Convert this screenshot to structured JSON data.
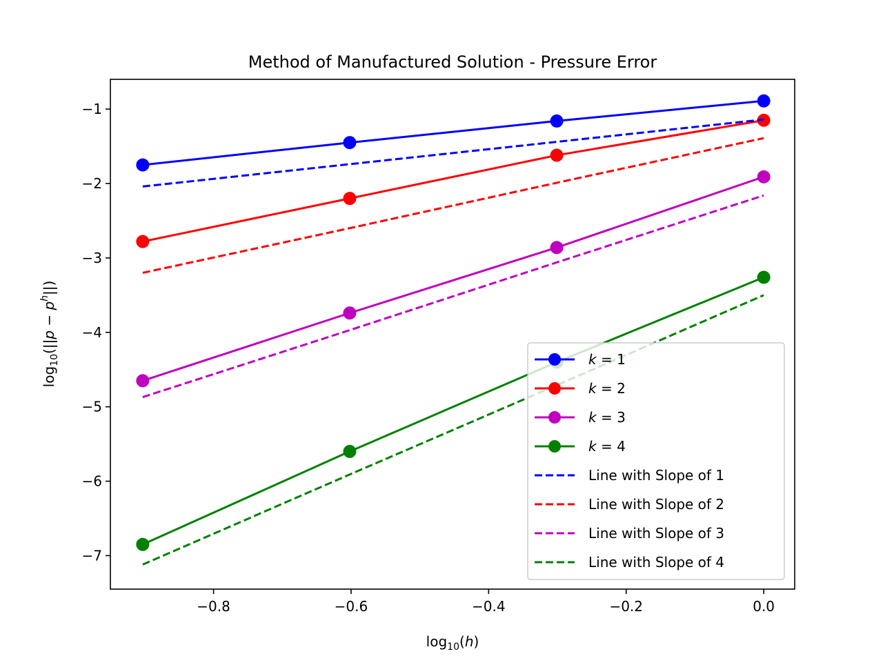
{
  "chart_data": {
    "type": "line",
    "title": "Method of Manufactured Solution - Pressure Error",
    "xlabel": {
      "prefix": "log",
      "sub": "10",
      "open": "(",
      "var": "h",
      "close": ")"
    },
    "ylabel": {
      "prefix": "log",
      "sub": "10",
      "open": "(||",
      "var1": "p",
      "minus": " − ",
      "var2": "p",
      "sup": "h",
      "close": "||)"
    },
    "xlim": [
      -0.95,
      0.045
    ],
    "ylim": [
      -7.45,
      -0.6
    ],
    "xticks": [
      -0.8,
      -0.6,
      -0.4,
      -0.2,
      0.0
    ],
    "xtick_labels": [
      "−0.8",
      "−0.6",
      "−0.4",
      "−0.2",
      "0.0"
    ],
    "yticks": [
      -1,
      -2,
      -3,
      -4,
      -5,
      -6,
      -7
    ],
    "ytick_labels": [
      "−1",
      "−2",
      "−3",
      "−4",
      "−5",
      "−6",
      "−7"
    ],
    "x": [
      -0.903,
      -0.602,
      -0.301,
      0.0
    ],
    "series": [
      {
        "name": "k=1",
        "k": "1",
        "style": "solid",
        "marker": "circle",
        "color": "#0000ff",
        "values": [
          -1.75,
          -1.45,
          -1.16,
          -0.89
        ]
      },
      {
        "name": "k=2",
        "k": "2",
        "style": "solid",
        "marker": "circle",
        "color": "#ff0000",
        "values": [
          -2.78,
          -2.2,
          -1.62,
          -1.15
        ]
      },
      {
        "name": "k=3",
        "k": "3",
        "style": "solid",
        "marker": "circle",
        "color": "#bf00bf",
        "values": [
          -4.65,
          -3.74,
          -2.86,
          -1.91
        ]
      },
      {
        "name": "k=4",
        "k": "4",
        "style": "solid",
        "marker": "circle",
        "color": "#008000",
        "values": [
          -6.85,
          -5.6,
          -4.4,
          -3.26
        ]
      },
      {
        "name": "Line with Slope of 1",
        "style": "dashed",
        "color": "#0000ff",
        "values": [
          -2.04,
          -1.74,
          -1.44,
          -1.14
        ]
      },
      {
        "name": "Line with Slope of 2",
        "style": "dashed",
        "color": "#ff0000",
        "values": [
          -3.2,
          -2.6,
          -1.99,
          -1.39
        ]
      },
      {
        "name": "Line with Slope of 3",
        "style": "dashed",
        "color": "#bf00bf",
        "values": [
          -4.87,
          -3.97,
          -3.06,
          -2.16
        ]
      },
      {
        "name": "Line with Slope of 4",
        "style": "dashed",
        "color": "#008000",
        "values": [
          -7.12,
          -5.91,
          -4.71,
          -3.5
        ]
      }
    ],
    "legend": {
      "location": "lower-right",
      "k_prefix": "k",
      "k_equals": " = "
    },
    "grid": false
  }
}
